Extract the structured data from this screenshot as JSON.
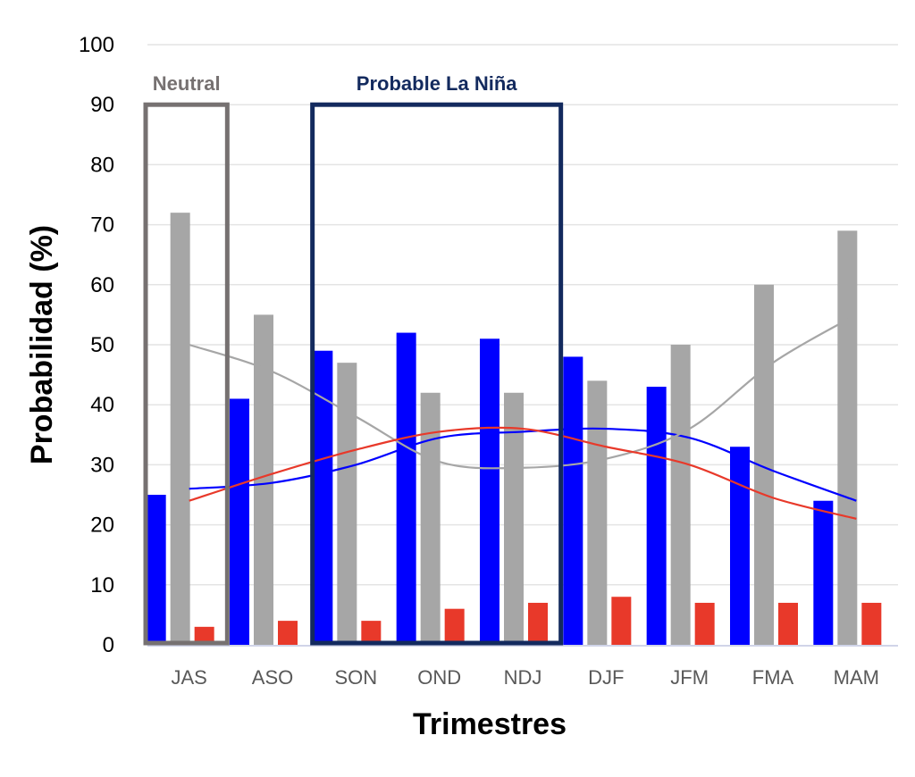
{
  "chart_data": {
    "type": "bar",
    "categories": [
      "JAS",
      "ASO",
      "SON",
      "OND",
      "NDJ",
      "DJF",
      "JFM",
      "FMA",
      "MAM"
    ],
    "series": [
      {
        "color": "#0000ff",
        "values": [
          25,
          41,
          49,
          52,
          51,
          48,
          43,
          33,
          24
        ]
      },
      {
        "color": "#a6a6a6",
        "values": [
          72,
          55,
          47,
          42,
          42,
          44,
          50,
          60,
          69
        ]
      },
      {
        "color": "#e8392a",
        "values": [
          3,
          4,
          4,
          6,
          7,
          8,
          7,
          7,
          7
        ]
      }
    ],
    "trend_lines": [
      {
        "color": "#0000ff",
        "values": [
          26,
          27,
          30,
          34.5,
          35.5,
          36,
          34.5,
          29,
          24
        ]
      },
      {
        "color": "#a6a6a6",
        "values": [
          50,
          45.5,
          38,
          30.5,
          29.5,
          31,
          36,
          47,
          55
        ]
      },
      {
        "color": "#e8392a",
        "values": [
          24,
          28.5,
          32.5,
          35.5,
          36,
          33,
          30,
          24.5,
          21
        ]
      }
    ],
    "yticks": [
      0,
      10,
      20,
      30,
      40,
      50,
      60,
      70,
      80,
      90,
      100
    ],
    "ylim": [
      0,
      100
    ],
    "xlabel": "Trimestres",
    "ylabel": "Probabilidad (%)",
    "grid": true,
    "annotations": [
      {
        "label": "Neutral",
        "color": "#767171",
        "from": "JAS",
        "to": "JAS"
      },
      {
        "label": "Probable La Niña",
        "color": "#132a5e",
        "from": "SON",
        "to": "NDJ"
      }
    ]
  }
}
